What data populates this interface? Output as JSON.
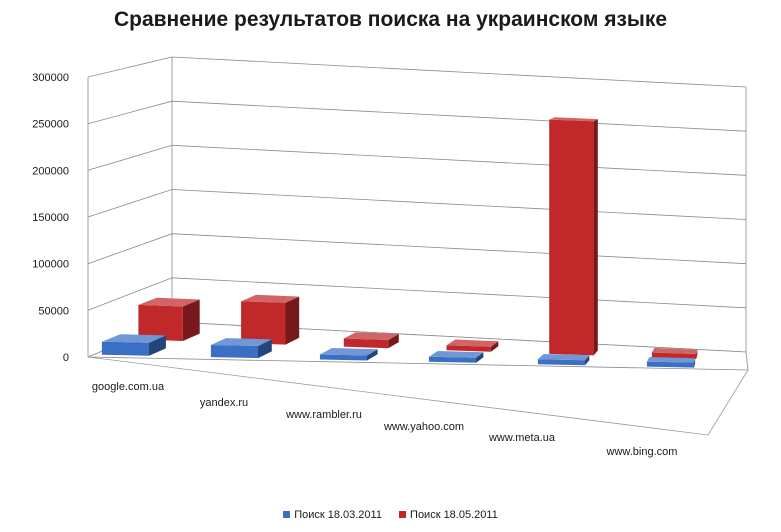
{
  "chart_data": {
    "type": "bar",
    "title": "Сравнение результатов поиска на украинском языке",
    "categories": [
      "google.com.ua",
      "yandex.ru",
      "www.rambler.ru",
      "www.yahoo.com",
      "www.meta.ua",
      "www.bing.com"
    ],
    "series": [
      {
        "name": "Поиск 18.03.2011",
        "color": "#3a6fc4",
        "values": [
          14000,
          13000,
          1500,
          2000,
          3000,
          3500
        ]
      },
      {
        "name": "Поиск 18.05.2011",
        "color": "#c0282a",
        "values": [
          38000,
          46000,
          9000,
          4500,
          258000,
          5000
        ]
      }
    ],
    "y_ticks": [
      "0",
      "50000",
      "100000",
      "150000",
      "200000",
      "250000",
      "300000"
    ],
    "ylim": [
      0,
      300000
    ],
    "grid": true,
    "legend_position": "bottom",
    "projection": "3d-perspective"
  }
}
